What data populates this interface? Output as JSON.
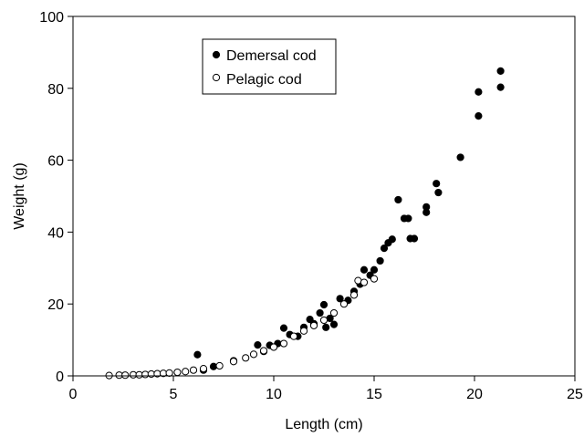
{
  "chart_data": {
    "type": "scatter",
    "title": "",
    "xlabel": "Length (cm)",
    "ylabel": "Weight (g)",
    "xlim": [
      0,
      25
    ],
    "ylim": [
      0,
      100
    ],
    "xticks": [
      0,
      5,
      10,
      15,
      20,
      25
    ],
    "yticks": [
      0,
      20,
      40,
      60,
      80,
      100
    ],
    "grid": false,
    "legend_position": "top-center",
    "series": [
      {
        "name": "Demersal cod",
        "marker": "filled-circle",
        "color": "#000000",
        "points": [
          [
            6.2,
            5.9
          ],
          [
            6.5,
            1.6
          ],
          [
            7.0,
            2.6
          ],
          [
            8.0,
            4.2
          ],
          [
            9.2,
            8.6
          ],
          [
            9.5,
            6.8
          ],
          [
            9.8,
            8.5
          ],
          [
            10.2,
            9.0
          ],
          [
            10.5,
            13.3
          ],
          [
            10.8,
            11.5
          ],
          [
            11.2,
            11.0
          ],
          [
            11.5,
            13.5
          ],
          [
            11.8,
            15.7
          ],
          [
            12.0,
            14.5
          ],
          [
            12.3,
            17.5
          ],
          [
            12.5,
            19.8
          ],
          [
            12.6,
            13.5
          ],
          [
            12.8,
            16.0
          ],
          [
            13.0,
            14.3
          ],
          [
            13.3,
            21.5
          ],
          [
            13.7,
            21.0
          ],
          [
            14.0,
            23.5
          ],
          [
            14.3,
            25.5
          ],
          [
            14.5,
            29.5
          ],
          [
            14.8,
            28.0
          ],
          [
            15.0,
            29.5
          ],
          [
            15.3,
            32.0
          ],
          [
            15.5,
            35.5
          ],
          [
            15.7,
            37.0
          ],
          [
            15.9,
            38.0
          ],
          [
            16.2,
            49.0
          ],
          [
            16.5,
            43.8
          ],
          [
            16.7,
            43.8
          ],
          [
            16.8,
            38.2
          ],
          [
            17.0,
            38.2
          ],
          [
            17.6,
            45.5
          ],
          [
            17.6,
            47.0
          ],
          [
            18.1,
            53.5
          ],
          [
            18.2,
            51.0
          ],
          [
            19.3,
            60.8
          ],
          [
            20.2,
            72.3
          ],
          [
            20.2,
            79.0
          ],
          [
            21.3,
            84.8
          ],
          [
            21.3,
            80.3
          ]
        ]
      },
      {
        "name": "Pelagic cod",
        "marker": "open-circle",
        "color": "#000000",
        "points": [
          [
            1.8,
            0.1
          ],
          [
            2.3,
            0.2
          ],
          [
            2.6,
            0.2
          ],
          [
            3.0,
            0.3
          ],
          [
            3.3,
            0.3
          ],
          [
            3.6,
            0.4
          ],
          [
            3.9,
            0.5
          ],
          [
            4.2,
            0.6
          ],
          [
            4.5,
            0.7
          ],
          [
            4.8,
            0.8
          ],
          [
            5.2,
            1.0
          ],
          [
            5.6,
            1.2
          ],
          [
            6.0,
            1.6
          ],
          [
            6.5,
            2.0
          ],
          [
            7.3,
            2.8
          ],
          [
            8.0,
            4.0
          ],
          [
            8.6,
            5.0
          ],
          [
            9.0,
            6.0
          ],
          [
            9.5,
            7.0
          ],
          [
            10.0,
            8.0
          ],
          [
            10.5,
            9.0
          ],
          [
            11.0,
            11.0
          ],
          [
            11.5,
            12.5
          ],
          [
            12.0,
            14.0
          ],
          [
            12.5,
            15.5
          ],
          [
            13.0,
            17.5
          ],
          [
            13.5,
            20.0
          ],
          [
            14.0,
            22.5
          ],
          [
            14.2,
            26.5
          ],
          [
            14.5,
            26.0
          ],
          [
            15.0,
            27.0
          ]
        ]
      }
    ]
  }
}
